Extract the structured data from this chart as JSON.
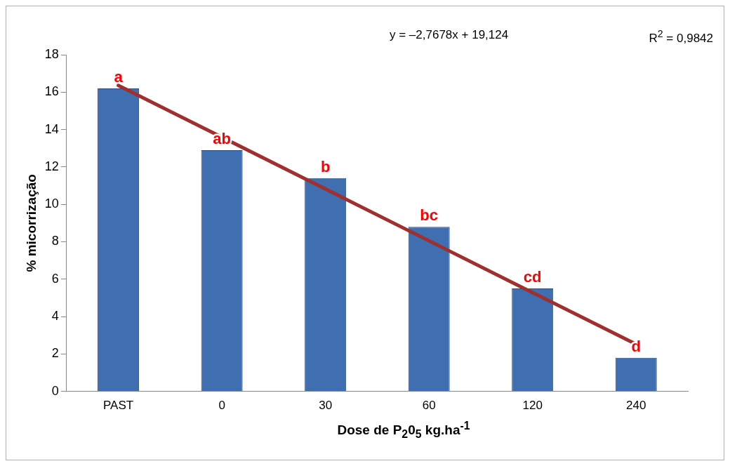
{
  "chart_data": {
    "type": "bar",
    "xlabel": "Dose de P$_{2}$0$_{5}$ kg.ha$^{-1}$",
    "ylabel": "% micorrização",
    "categories": [
      "PAST",
      "0",
      "30",
      "60",
      "120",
      "240"
    ],
    "series": [
      {
        "color": "#3f6fb0",
        "values": [
          16.2,
          12.9,
          11.4,
          8.8,
          5.5,
          1.8
        ]
      },
      {
        "type": "line",
        "color": "#a0302d",
        "values": [
          16.36,
          13.59,
          10.82,
          8.05,
          5.28,
          2.52
        ]
      }
    ],
    "ylim": [
      0,
      18
    ],
    "yticks": [
      0,
      2,
      4,
      6,
      8,
      10,
      12,
      14,
      16,
      18
    ],
    "grid": false,
    "legend": false,
    "marker": "none",
    "line_style": "solid",
    "annotations": [
      "y = –2,7678x + 19,124",
      "R$^{2}$ = 0,9842",
      {
        "text": "a",
        "x": "PAST",
        "y": 16.2
      },
      {
        "text": "ab",
        "x": "0",
        "y": 12.9
      },
      {
        "text": "b",
        "x": "30",
        "y": 11.4
      },
      {
        "text": "bc",
        "x": "60",
        "y": 8.8
      },
      {
        "text": "cd",
        "x": "120",
        "y": 5.5
      },
      {
        "text": "d",
        "x": "240",
        "y": 1.8
      }
    ]
  }
}
